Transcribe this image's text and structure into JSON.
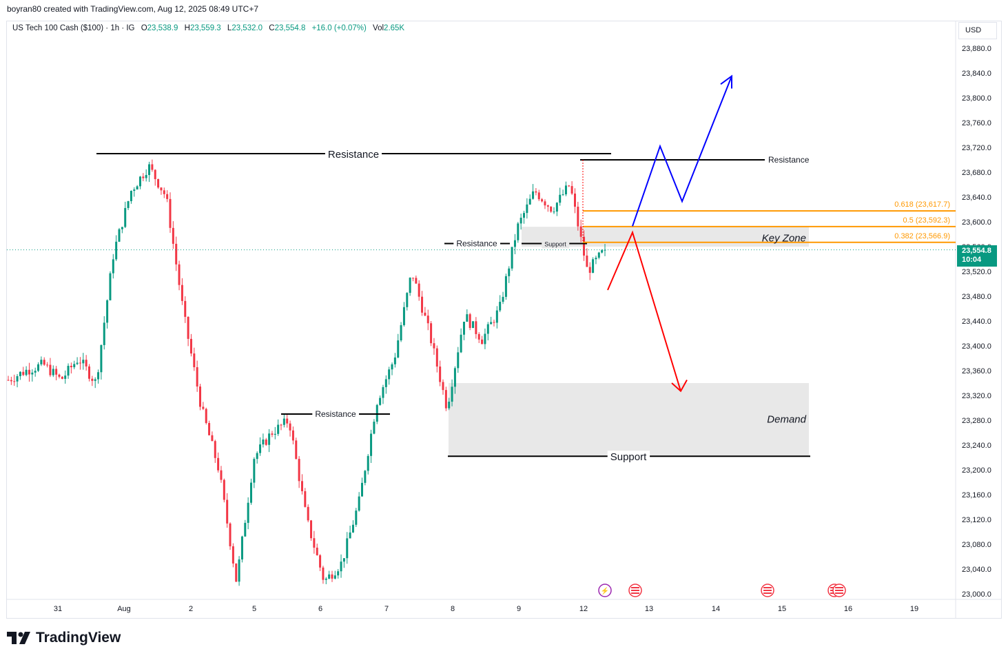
{
  "header": {
    "credit": "boyran80 created with TradingView.com, Aug 12, 2025 08:49 UTC+7"
  },
  "legend": {
    "symbol": "US Tech 100 Cash ($100) · 1h · IG",
    "open_label": "O",
    "open": "23,538.9",
    "high_label": "H",
    "high": "23,559.3",
    "low_label": "L",
    "low": "23,532.0",
    "close_label": "C",
    "close": "23,554.8",
    "change": "+16.0 (+0.07%)",
    "vol_label": "Vol",
    "vol": "2.65K"
  },
  "price_axis": {
    "currency": "USD",
    "current_price": "23,554.8",
    "countdown": "10:04",
    "ticks": [
      "23,880.0",
      "23,840.0",
      "23,800.0",
      "23,760.0",
      "23,720.0",
      "23,680.0",
      "23,640.0",
      "23,600.0",
      "23,560.0",
      "23,520.0",
      "23,480.0",
      "23,440.0",
      "23,400.0",
      "23,360.0",
      "23,320.0",
      "23,280.0",
      "23,240.0",
      "23,200.0",
      "23,160.0",
      "23,120.0",
      "23,080.0",
      "23,040.0",
      "23,000.0"
    ]
  },
  "time_axis": {
    "ticks": [
      "31",
      "Aug",
      "2",
      "5",
      "6",
      "7",
      "8",
      "9",
      "12",
      "13",
      "14",
      "15",
      "16",
      "19"
    ]
  },
  "annotations": {
    "resistance_main": "Resistance",
    "resistance_right": "Resistance",
    "resistance_mid": "Resistance",
    "resistance_low": "Resistance",
    "support_small": "Support",
    "support_main": "Support",
    "key_zone": "Key Zone",
    "demand": "Demand",
    "fib_618": "0.618 (23,617.7)",
    "fib_5": "0.5 (23,592.3)",
    "fib_382": "0.382 (23,566.9)"
  },
  "colors": {
    "up": "#089981",
    "down": "#f23645",
    "fib": "#ff9800",
    "bull_path": "#0000ff",
    "bear_path": "#ff0000",
    "zone": "#e8e8e8"
  },
  "brand": {
    "name": "TradingView"
  },
  "chart_data": {
    "type": "candlestick",
    "title": "US Tech 100 Cash ($100) · 1h · IG",
    "timeframe": "1h",
    "ylim": [
      23000,
      23900
    ],
    "last": {
      "open": 23538.9,
      "high": 23559.3,
      "low": 23532.0,
      "close": 23554.8,
      "change": 16.0,
      "change_pct": 0.07,
      "volume": "2.65K"
    },
    "horizontal_levels": [
      {
        "label": "Resistance",
        "price": 23710
      },
      {
        "label": "Resistance",
        "price": 23700
      },
      {
        "label": "Resistance",
        "price": 23565
      },
      {
        "label": "Resistance",
        "price": 23290
      },
      {
        "label": "Support",
        "price": 23565
      },
      {
        "label": "Support",
        "price": 23222
      }
    ],
    "fibonacci": [
      {
        "level": 0.618,
        "price": 23617.7
      },
      {
        "level": 0.5,
        "price": 23592.3
      },
      {
        "level": 0.382,
        "price": 23566.9
      }
    ],
    "zones": [
      {
        "label": "Key Zone",
        "from": 23560,
        "to": 23592
      },
      {
        "label": "Demand",
        "from": 23222,
        "to": 23340
      }
    ],
    "closes_sample": [
      {
        "t": "Jul 30",
        "p": 23345
      },
      {
        "t": "Jul 30",
        "p": 23360
      },
      {
        "t": "Jul 30",
        "p": 23370
      },
      {
        "t": "Jul 30",
        "p": 23345
      },
      {
        "t": "Jul 31",
        "p": 23380
      },
      {
        "t": "Jul 31",
        "p": 23340
      },
      {
        "t": "Jul 31",
        "p": 23550
      },
      {
        "t": "Jul 31",
        "p": 23650
      },
      {
        "t": "Jul 31",
        "p": 23690
      },
      {
        "t": "Jul 31",
        "p": 23640
      },
      {
        "t": "Aug 1",
        "p": 23450
      },
      {
        "t": "Aug 1",
        "p": 23300
      },
      {
        "t": "Aug 1",
        "p": 23200
      },
      {
        "t": "Aug 1",
        "p": 23020
      },
      {
        "t": "Aug 4",
        "p": 23220
      },
      {
        "t": "Aug 4",
        "p": 23260
      },
      {
        "t": "Aug 5",
        "p": 23280
      },
      {
        "t": "Aug 5",
        "p": 23120
      },
      {
        "t": "Aug 5",
        "p": 23020
      },
      {
        "t": "Aug 6",
        "p": 23050
      },
      {
        "t": "Aug 6",
        "p": 23150
      },
      {
        "t": "Aug 6",
        "p": 23310
      },
      {
        "t": "Aug 7",
        "p": 23380
      },
      {
        "t": "Aug 7",
        "p": 23520
      },
      {
        "t": "Aug 7",
        "p": 23420
      },
      {
        "t": "Aug 8",
        "p": 23300
      },
      {
        "t": "Aug 8",
        "p": 23450
      },
      {
        "t": "Aug 8",
        "p": 23410
      },
      {
        "t": "Aug 8",
        "p": 23460
      },
      {
        "t": "Aug 11",
        "p": 23590
      },
      {
        "t": "Aug 11",
        "p": 23650
      },
      {
        "t": "Aug 11",
        "p": 23620
      },
      {
        "t": "Aug 11",
        "p": 23660
      },
      {
        "t": "Aug 12",
        "p": 23520
      },
      {
        "t": "Aug 12",
        "p": 23554.8
      }
    ]
  }
}
